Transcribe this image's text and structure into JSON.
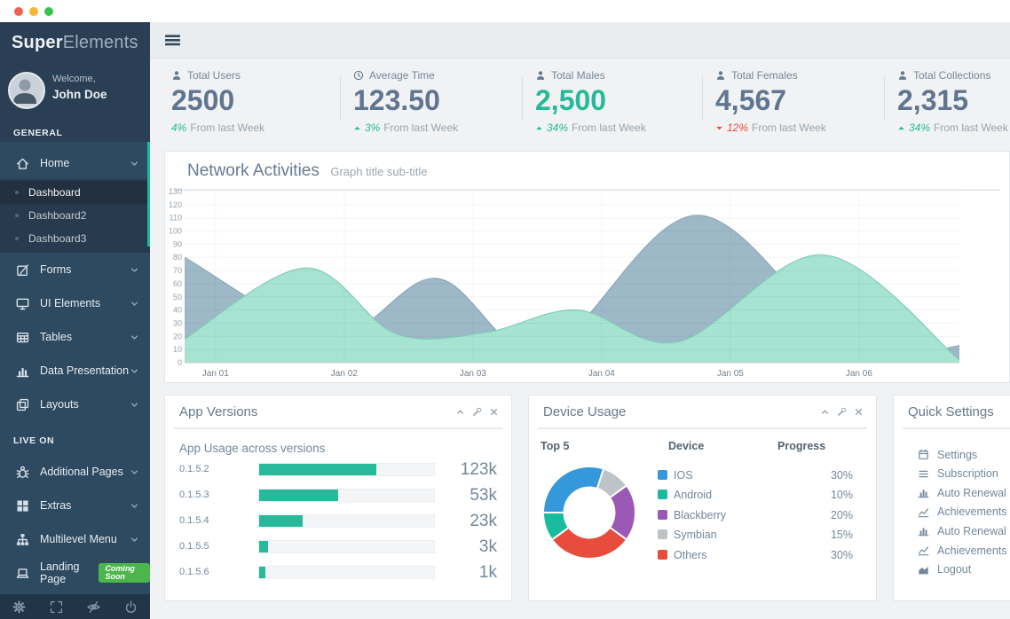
{
  "window": {
    "traffic_lights": [
      "#F35F51",
      "#F5B72E",
      "#39C24F"
    ]
  },
  "sidebar": {
    "logo_bold": "Super",
    "logo_light": "Elements",
    "welcome": "Welcome,",
    "username": "John Doe",
    "accent": "#1ABB9C",
    "sections": [
      {
        "title": "GENERAL",
        "items": [
          {
            "label": "Home",
            "icon": "home-icon",
            "chevron": true,
            "expanded": true,
            "children": [
              {
                "label": "Dashboard",
                "active": true
              },
              {
                "label": "Dashboard2",
                "active": false
              },
              {
                "label": "Dashboard3",
                "active": false
              }
            ]
          },
          {
            "label": "Forms",
            "icon": "edit-icon",
            "chevron": true
          },
          {
            "label": "UI Elements",
            "icon": "desktop-icon",
            "chevron": true
          },
          {
            "label": "Tables",
            "icon": "table-icon",
            "chevron": true
          },
          {
            "label": "Data Presentation",
            "icon": "bar-chart-icon",
            "chevron": true
          },
          {
            "label": "Layouts",
            "icon": "layers-icon",
            "chevron": true
          }
        ]
      },
      {
        "title": "LIVE ON",
        "items": [
          {
            "label": "Additional Pages",
            "icon": "bug-icon",
            "chevron": true
          },
          {
            "label": "Extras",
            "icon": "grid-icon",
            "chevron": true
          },
          {
            "label": "Multilevel Menu",
            "icon": "sitemap-icon",
            "chevron": true
          },
          {
            "label": "Landing Page",
            "icon": "laptop-icon",
            "chevron": false,
            "badge": "Coming Soon",
            "badge_color": "#4CB64C"
          }
        ]
      }
    ],
    "footer_icons": [
      "gear-icon",
      "expand-icon",
      "eye-slash-icon",
      "power-icon"
    ]
  },
  "stats": [
    {
      "icon": "user-icon",
      "label": "Total Users",
      "value": "2500",
      "change": "4%",
      "note": "From last Week",
      "direction": "flat",
      "value_accent": false
    },
    {
      "icon": "clock-icon",
      "label": "Average Time",
      "value": "123.50",
      "change": "3%",
      "note": "From last Week",
      "direction": "up",
      "value_accent": false
    },
    {
      "icon": "user-icon",
      "label": "Total Males",
      "value": "2,500",
      "change": "34%",
      "note": "From last Week",
      "direction": "up",
      "value_accent": true
    },
    {
      "icon": "user-icon",
      "label": "Total Females",
      "value": "4,567",
      "change": "12%",
      "note": "From last Week",
      "direction": "down",
      "value_accent": false
    },
    {
      "icon": "user-icon",
      "label": "Total Collections",
      "value": "2,315",
      "change": "34%",
      "note": "From last Week",
      "direction": "up",
      "value_accent": false
    }
  ],
  "network_panel": {
    "title": "Network Activities",
    "subtitle": "Graph title sub-title"
  },
  "app_versions_panel": {
    "title": "App Versions",
    "subtitle": "App Usage across versions",
    "header_icons": [
      "chevron-up-icon",
      "wrench-icon",
      "close-icon"
    ]
  },
  "device_usage_panel": {
    "title": "Device Usage",
    "columns": [
      "Top 5",
      "Device",
      "Progress"
    ],
    "header_icons": [
      "chevron-up-icon",
      "wrench-icon",
      "close-icon"
    ]
  },
  "quick_settings_panel": {
    "title": "Quick Settings",
    "items": [
      {
        "icon": "calendar-icon",
        "label": "Settings"
      },
      {
        "icon": "list-icon",
        "label": "Subscription"
      },
      {
        "icon": "bar-chart-icon",
        "label": "Auto Renewal"
      },
      {
        "icon": "line-chart-icon",
        "label": "Achievements"
      },
      {
        "icon": "bar-chart-icon",
        "label": "Auto Renewal"
      },
      {
        "icon": "line-chart-icon",
        "label": "Achievements"
      },
      {
        "icon": "area-chart-icon",
        "label": "Logout"
      }
    ]
  },
  "chart_data": [
    {
      "type": "area",
      "title": "Network Activities",
      "subtitle": "Graph title sub-title",
      "x_labels": [
        "Jan 01",
        "Jan 02",
        "Jan 03",
        "Jan 04",
        "Jan 05",
        "Jan 06"
      ],
      "x_tick_positions": [
        1,
        2,
        3,
        4,
        5,
        6
      ],
      "x_domain": [
        0.76,
        6.78
      ],
      "ylim": [
        0,
        130
      ],
      "y_tick_step": 10,
      "grid": true,
      "legend_position": "none",
      "series": [
        {
          "name": "series-slate",
          "fill": "#9DB8C7",
          "stroke": "#8FA9BA",
          "points": [
            [
              0.76,
              80
            ],
            [
              1.9,
              21
            ],
            [
              2.72,
              64
            ],
            [
              3.55,
              8
            ],
            [
              4.75,
              112
            ],
            [
              6.0,
              3
            ],
            [
              6.78,
              13
            ]
          ]
        },
        {
          "name": "series-mint",
          "fill": "#A6E3D1",
          "stroke": "#84CDB9",
          "points": [
            [
              0.76,
              18
            ],
            [
              1.7,
              72
            ],
            [
              2.4,
              22
            ],
            [
              3.1,
              23
            ],
            [
              3.81,
              40
            ],
            [
              4.6,
              16
            ],
            [
              5.72,
              82
            ],
            [
              6.78,
              2
            ]
          ]
        }
      ]
    },
    {
      "type": "bar",
      "title": "App Versions",
      "subtitle": "App Usage across versions",
      "categories": [
        "0.1.5.2",
        "0.1.5.3",
        "0.1.5.4",
        "0.1.5.5",
        "0.1.5.6"
      ],
      "values": [
        123000,
        53000,
        23000,
        3000,
        1000
      ],
      "value_labels": [
        "123k",
        "53k",
        "23k",
        "3k",
        "1k"
      ],
      "bar_percents": [
        67,
        45,
        25,
        5,
        3.5
      ],
      "bar_color": "#26B99A"
    },
    {
      "type": "pie",
      "title": "Device Usage",
      "donut": true,
      "labels": [
        "IOS",
        "Android",
        "Blackberry",
        "Symbian",
        "Others"
      ],
      "values": [
        30,
        10,
        20,
        15,
        30
      ],
      "percent_labels": [
        "30%",
        "10%",
        "20%",
        "15%",
        "30%"
      ],
      "colors": [
        "#3498DB",
        "#1ABB9C",
        "#9B59B6",
        "#BDC3C7",
        "#E74C3C"
      ],
      "slice_order_clockwise_from_top": [
        "Symbian",
        "Blackberry",
        "Others",
        "Android",
        "IOS"
      ]
    }
  ]
}
